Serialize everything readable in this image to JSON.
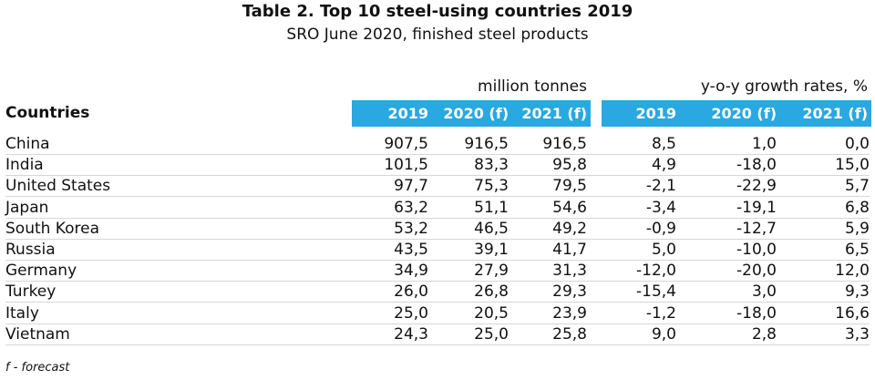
{
  "title": "Table 2. Top 10 steel-using countries 2019",
  "subtitle": "SRO June 2020, finished steel products",
  "group_headers": {
    "million_tonnes": "million tonnes",
    "growth_rates": "y-o-y growth rates, %"
  },
  "columns": {
    "countries": "Countries",
    "mt": [
      "2019",
      "2020 (f)",
      "2021 (f)"
    ],
    "yoy": [
      "2019",
      "2020 (f)",
      "2021 (f)"
    ]
  },
  "header_color": "#29a8e1",
  "rows": [
    {
      "country": "China",
      "mt": [
        "907,5",
        "916,5",
        "916,5"
      ],
      "yoy": [
        "8,5",
        "1,0",
        "0,0"
      ]
    },
    {
      "country": "India",
      "mt": [
        "101,5",
        "83,3",
        "95,8"
      ],
      "yoy": [
        "4,9",
        "-18,0",
        "15,0"
      ]
    },
    {
      "country": "United States",
      "mt": [
        "97,7",
        "75,3",
        "79,5"
      ],
      "yoy": [
        "-2,1",
        "-22,9",
        "5,7"
      ]
    },
    {
      "country": "Japan",
      "mt": [
        "63,2",
        "51,1",
        "54,6"
      ],
      "yoy": [
        "-3,4",
        "-19,1",
        "6,8"
      ]
    },
    {
      "country": "South Korea",
      "mt": [
        "53,2",
        "46,5",
        "49,2"
      ],
      "yoy": [
        "-0,9",
        "-12,7",
        "5,9"
      ]
    },
    {
      "country": "Russia",
      "mt": [
        "43,5",
        "39,1",
        "41,7"
      ],
      "yoy": [
        "5,0",
        "-10,0",
        "6,5"
      ]
    },
    {
      "country": "Germany",
      "mt": [
        "34,9",
        "27,9",
        "31,3"
      ],
      "yoy": [
        "-12,0",
        "-20,0",
        "12,0"
      ]
    },
    {
      "country": "Turkey",
      "mt": [
        "26,0",
        "26,8",
        "29,3"
      ],
      "yoy": [
        "-15,4",
        "3,0",
        "9,3"
      ]
    },
    {
      "country": "Italy",
      "mt": [
        "25,0",
        "20,5",
        "23,9"
      ],
      "yoy": [
        "-1,2",
        "-18,0",
        "16,6"
      ]
    },
    {
      "country": "Vietnam",
      "mt": [
        "24,3",
        "25,0",
        "25,8"
      ],
      "yoy": [
        "9,0",
        "2,8",
        "3,3"
      ]
    }
  ],
  "footnote": "f - forecast"
}
